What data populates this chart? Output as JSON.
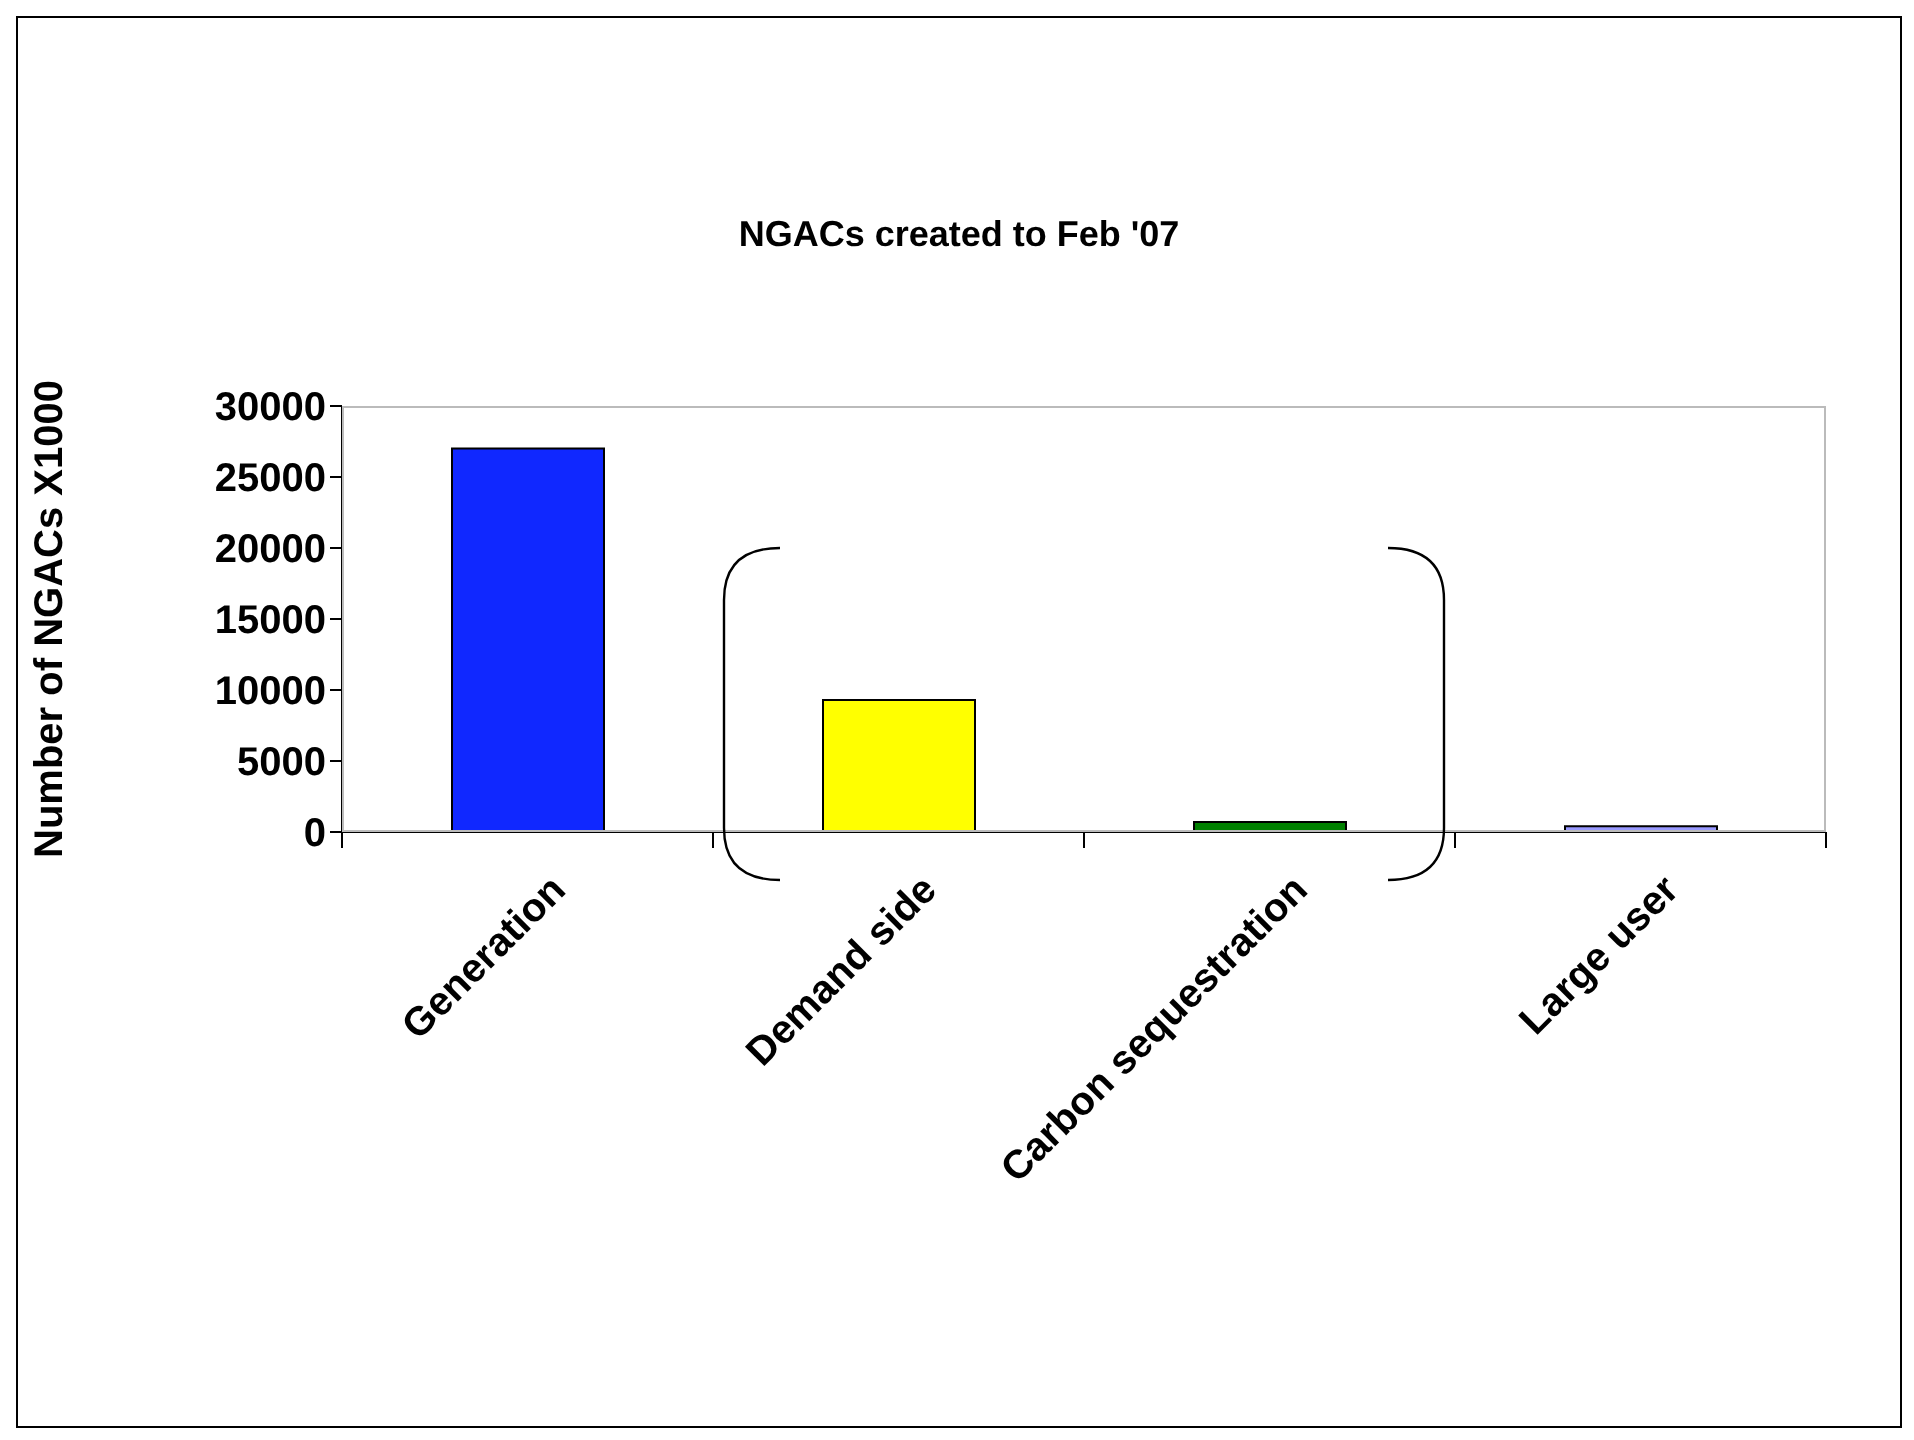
{
  "chart_data": {
    "type": "bar",
    "title": "NGACs created to Feb '07",
    "ylabel": "Number of NGACs X1000",
    "categories": [
      "Generation",
      "Demand side",
      "Carbon sequestration",
      "Large user"
    ],
    "values": [
      27000,
      9300,
      700,
      400
    ],
    "colors": [
      "#1028ff",
      "#ffff00",
      "#008000",
      "#9999ff"
    ],
    "ylim": [
      0,
      30000
    ],
    "yticks": [
      0,
      5000,
      10000,
      15000,
      20000,
      25000,
      30000
    ],
    "grid": false,
    "legend": false
  }
}
